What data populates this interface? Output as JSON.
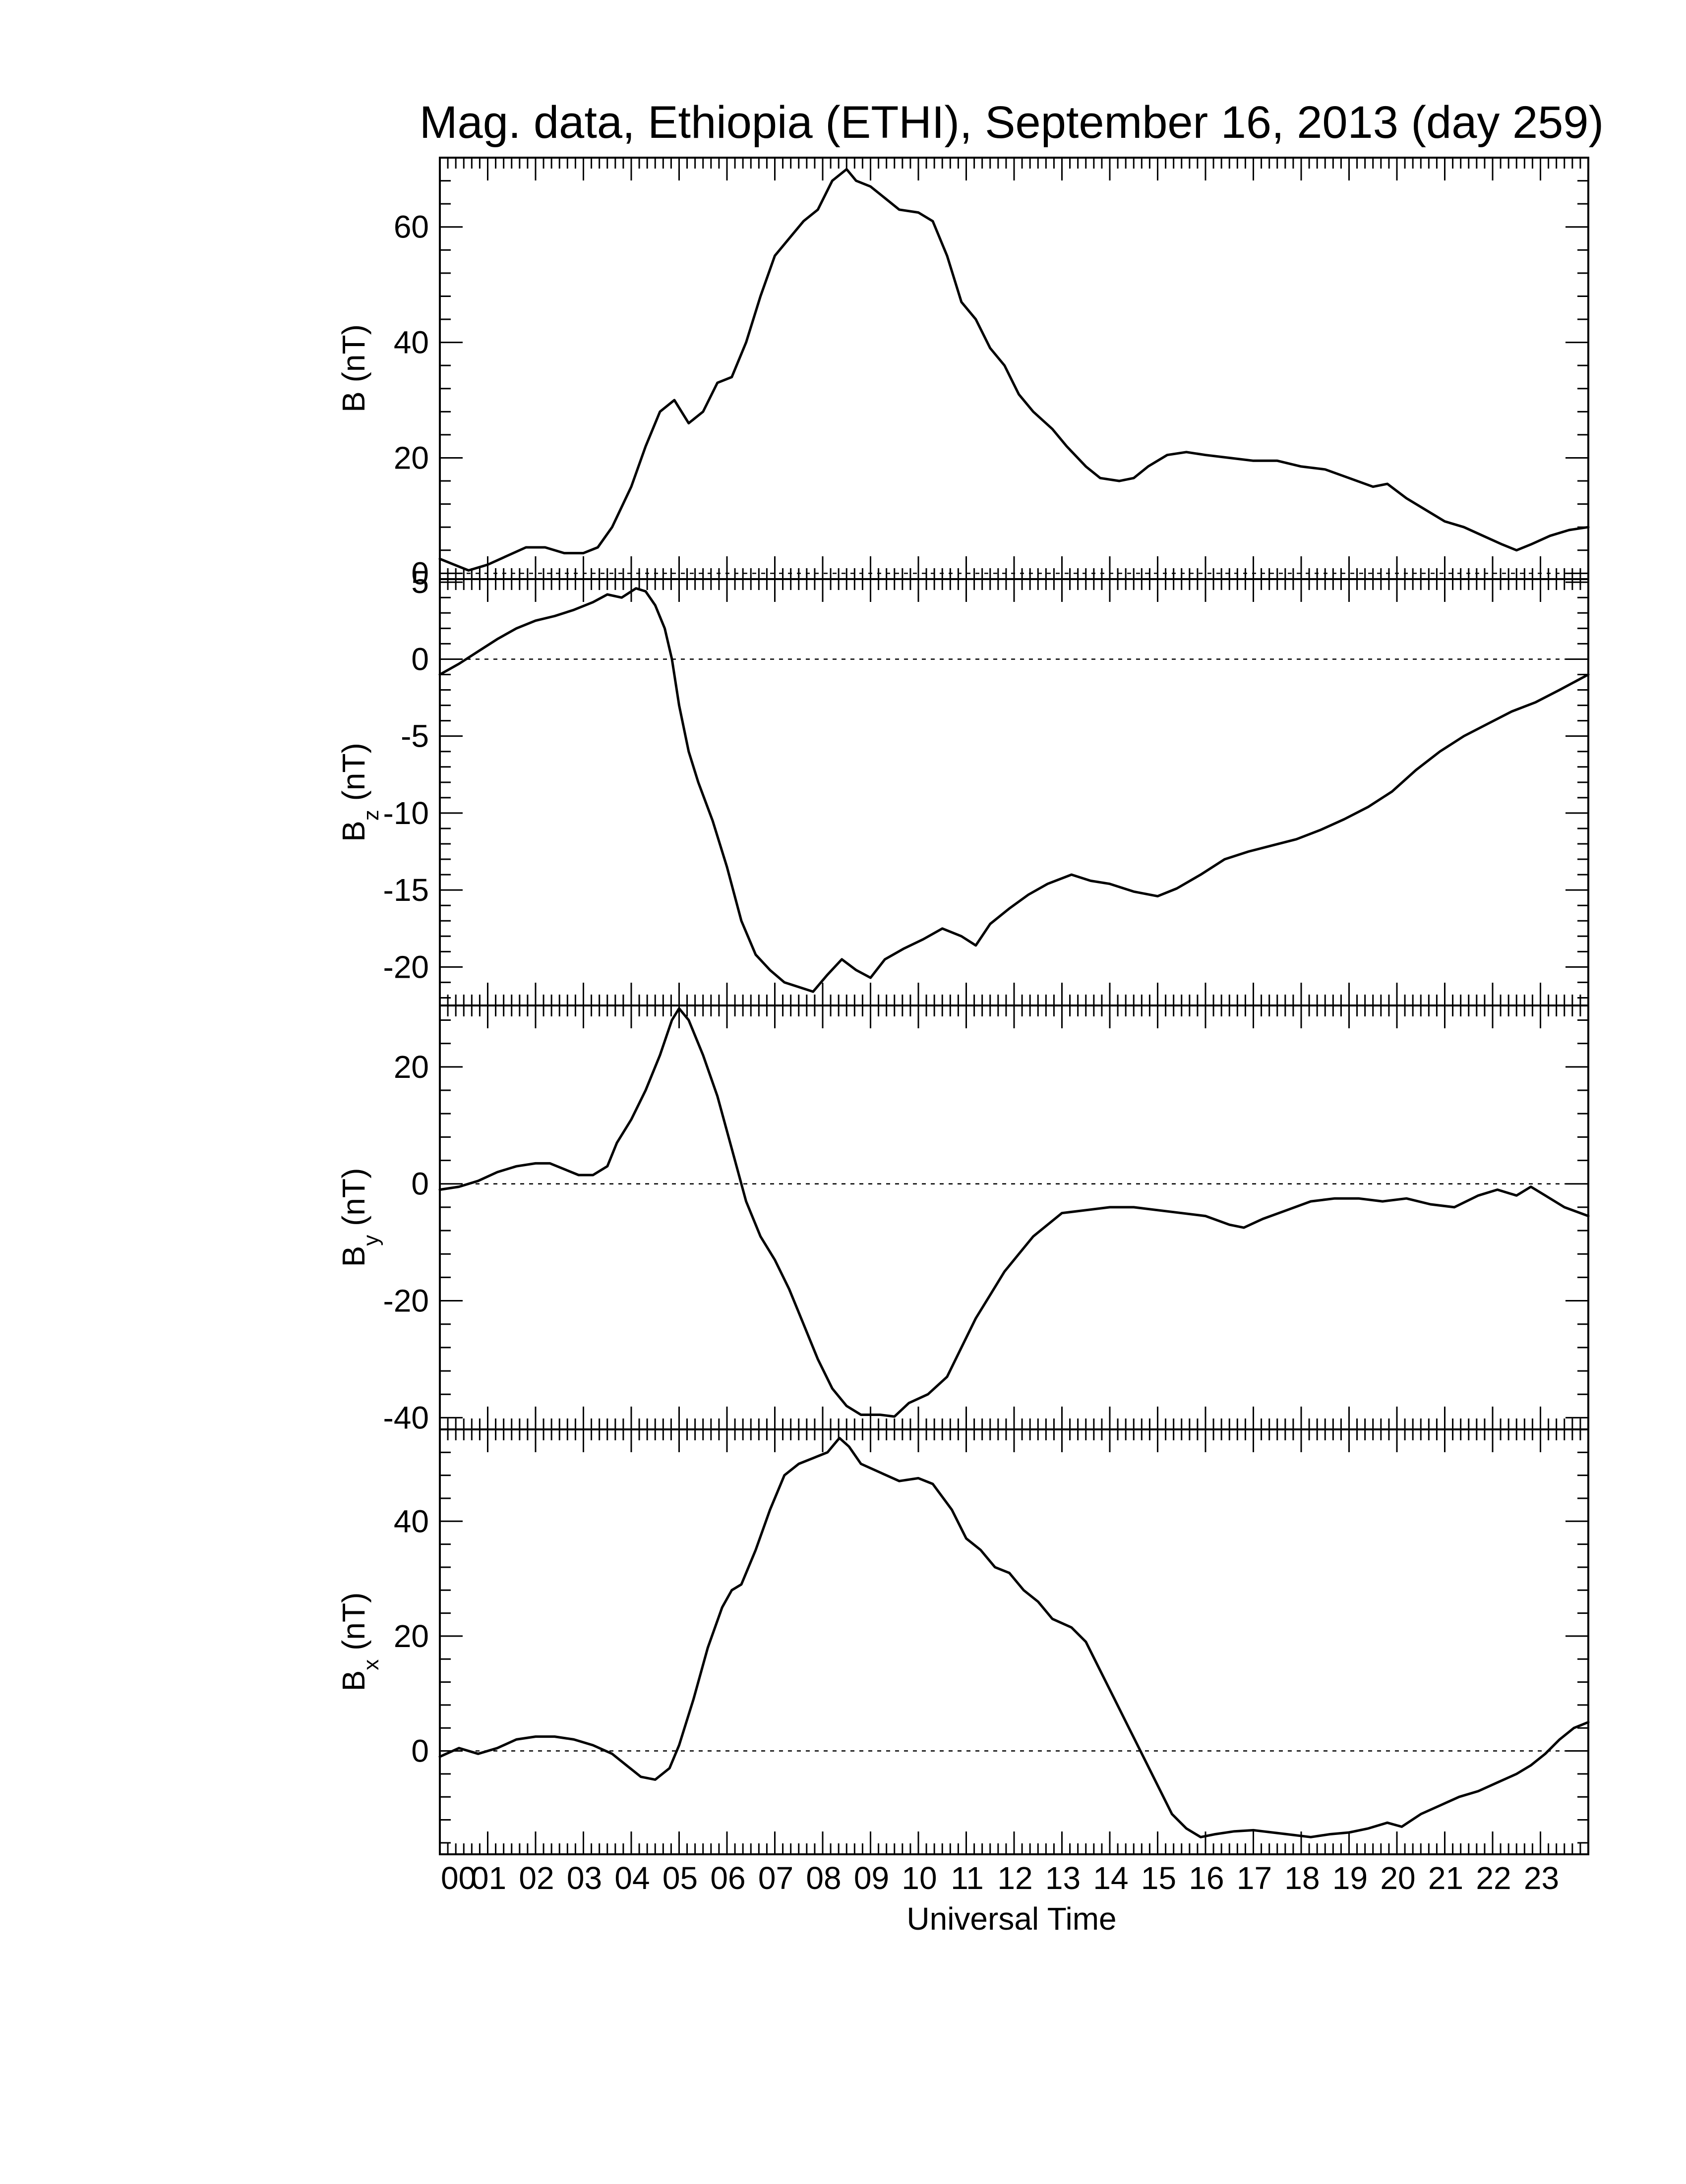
{
  "chart_data": {
    "type": "line",
    "title": "Mag. data, Ethiopia (ETHI), September 16, 2013 (day 259)",
    "xlabel": "Universal Time",
    "xlim": [
      0,
      24
    ],
    "x_tick_labels": [
      "00",
      "01",
      "02",
      "03",
      "04",
      "05",
      "06",
      "07",
      "08",
      "09",
      "10",
      "11",
      "12",
      "13",
      "14",
      "15",
      "16",
      "17",
      "18",
      "19",
      "20",
      "21",
      "22",
      "23"
    ],
    "panels": [
      {
        "id": "B",
        "ylabel": "B (nT)",
        "ylabel_main": "B",
        "ylabel_sub": "",
        "ylabel_unit": " (nT)",
        "ylim": [
          -1,
          72
        ],
        "yticks": [
          0,
          20,
          40,
          60
        ],
        "ytick_labels": [
          "0",
          "20",
          "40",
          "60"
        ],
        "zero_line": true,
        "points": [
          [
            0,
            2.5
          ],
          [
            0.3,
            1.5
          ],
          [
            0.6,
            0.5
          ],
          [
            1,
            1.5
          ],
          [
            1.4,
            3
          ],
          [
            1.8,
            4.5
          ],
          [
            2.2,
            4.5
          ],
          [
            2.6,
            3.5
          ],
          [
            3,
            3.5
          ],
          [
            3.3,
            4.5
          ],
          [
            3.6,
            8
          ],
          [
            4,
            15
          ],
          [
            4.3,
            22
          ],
          [
            4.6,
            28
          ],
          [
            4.9,
            30
          ],
          [
            5.2,
            26
          ],
          [
            5.5,
            28
          ],
          [
            5.8,
            33
          ],
          [
            6.1,
            34
          ],
          [
            6.4,
            40
          ],
          [
            6.7,
            48
          ],
          [
            7,
            55
          ],
          [
            7.3,
            58
          ],
          [
            7.6,
            61
          ],
          [
            7.9,
            63
          ],
          [
            8.2,
            68
          ],
          [
            8.5,
            70
          ],
          [
            8.7,
            68
          ],
          [
            9,
            67
          ],
          [
            9.3,
            65
          ],
          [
            9.6,
            63
          ],
          [
            10,
            62.5
          ],
          [
            10.3,
            61
          ],
          [
            10.6,
            55
          ],
          [
            10.9,
            47
          ],
          [
            11.2,
            44
          ],
          [
            11.5,
            39
          ],
          [
            11.8,
            36
          ],
          [
            12.1,
            31
          ],
          [
            12.4,
            28
          ],
          [
            12.8,
            25
          ],
          [
            13.1,
            22
          ],
          [
            13.5,
            18.5
          ],
          [
            13.8,
            16.5
          ],
          [
            14.2,
            16
          ],
          [
            14.5,
            16.5
          ],
          [
            14.8,
            18.5
          ],
          [
            15.2,
            20.5
          ],
          [
            15.6,
            21
          ],
          [
            16,
            20.5
          ],
          [
            16.5,
            20
          ],
          [
            17,
            19.5
          ],
          [
            17.5,
            19.5
          ],
          [
            18,
            18.5
          ],
          [
            18.5,
            18
          ],
          [
            19,
            16.5
          ],
          [
            19.5,
            15
          ],
          [
            19.8,
            15.5
          ],
          [
            20.2,
            13
          ],
          [
            20.6,
            11
          ],
          [
            21,
            9
          ],
          [
            21.4,
            8
          ],
          [
            21.8,
            6.5
          ],
          [
            22.2,
            5
          ],
          [
            22.5,
            4
          ],
          [
            22.8,
            5
          ],
          [
            23.2,
            6.5
          ],
          [
            23.6,
            7.5
          ],
          [
            24,
            8
          ]
        ]
      },
      {
        "id": "Bz",
        "ylabel": "Bz (nT)",
        "ylabel_main": "B",
        "ylabel_sub": "z",
        "ylabel_unit": " (nT)",
        "ylim": [
          -22.5,
          5.2
        ],
        "yticks": [
          -20,
          -15,
          -10,
          -5,
          0,
          5
        ],
        "ytick_labels": [
          "-20",
          "-15",
          "-10",
          "-5",
          "0",
          "5"
        ],
        "zero_line": true,
        "points": [
          [
            0,
            -1
          ],
          [
            0.4,
            -0.3
          ],
          [
            0.8,
            0.5
          ],
          [
            1.2,
            1.3
          ],
          [
            1.6,
            2
          ],
          [
            2,
            2.5
          ],
          [
            2.4,
            2.8
          ],
          [
            2.8,
            3.2
          ],
          [
            3.2,
            3.7
          ],
          [
            3.5,
            4.2
          ],
          [
            3.8,
            4
          ],
          [
            4.1,
            4.6
          ],
          [
            4.3,
            4.4
          ],
          [
            4.5,
            3.5
          ],
          [
            4.7,
            2
          ],
          [
            4.85,
            0
          ],
          [
            5,
            -3
          ],
          [
            5.2,
            -6
          ],
          [
            5.4,
            -8
          ],
          [
            5.7,
            -10.5
          ],
          [
            6,
            -13.5
          ],
          [
            6.3,
            -17
          ],
          [
            6.6,
            -19.2
          ],
          [
            6.9,
            -20.2
          ],
          [
            7.2,
            -21
          ],
          [
            7.5,
            -21.3
          ],
          [
            7.8,
            -21.6
          ],
          [
            8.1,
            -20.5
          ],
          [
            8.4,
            -19.5
          ],
          [
            8.7,
            -20.2
          ],
          [
            9,
            -20.7
          ],
          [
            9.3,
            -19.5
          ],
          [
            9.7,
            -18.8
          ],
          [
            10.1,
            -18.2
          ],
          [
            10.5,
            -17.5
          ],
          [
            10.9,
            -18
          ],
          [
            11.2,
            -18.6
          ],
          [
            11.5,
            -17.2
          ],
          [
            11.9,
            -16.2
          ],
          [
            12.3,
            -15.3
          ],
          [
            12.7,
            -14.6
          ],
          [
            13.2,
            -14
          ],
          [
            13.6,
            -14.4
          ],
          [
            14,
            -14.6
          ],
          [
            14.5,
            -15.1
          ],
          [
            15,
            -15.4
          ],
          [
            15.4,
            -14.9
          ],
          [
            15.9,
            -14
          ],
          [
            16.4,
            -13
          ],
          [
            16.9,
            -12.5
          ],
          [
            17.4,
            -12.1
          ],
          [
            17.9,
            -11.7
          ],
          [
            18.4,
            -11.1
          ],
          [
            18.9,
            -10.4
          ],
          [
            19.4,
            -9.6
          ],
          [
            19.9,
            -8.6
          ],
          [
            20.4,
            -7.2
          ],
          [
            20.9,
            -6
          ],
          [
            21.4,
            -5
          ],
          [
            21.9,
            -4.2
          ],
          [
            22.4,
            -3.4
          ],
          [
            22.9,
            -2.8
          ],
          [
            23.4,
            -2
          ],
          [
            24,
            -1
          ]
        ]
      },
      {
        "id": "By",
        "ylabel": "By (nT)",
        "ylabel_main": "B",
        "ylabel_sub": "y",
        "ylabel_unit": " (nT)",
        "ylim": [
          -42,
          30.5
        ],
        "yticks": [
          -40,
          -20,
          0,
          20
        ],
        "ytick_labels": [
          "-40",
          "-20",
          "0",
          "20"
        ],
        "zero_line": true,
        "points": [
          [
            0,
            -1
          ],
          [
            0.4,
            -0.5
          ],
          [
            0.8,
            0.5
          ],
          [
            1.2,
            2
          ],
          [
            1.6,
            3
          ],
          [
            2,
            3.5
          ],
          [
            2.3,
            3.5
          ],
          [
            2.6,
            2.5
          ],
          [
            2.9,
            1.5
          ],
          [
            3.2,
            1.5
          ],
          [
            3.5,
            3
          ],
          [
            3.7,
            7
          ],
          [
            4,
            11
          ],
          [
            4.3,
            16
          ],
          [
            4.6,
            22
          ],
          [
            4.85,
            28
          ],
          [
            5,
            30
          ],
          [
            5.2,
            28
          ],
          [
            5.5,
            22
          ],
          [
            5.8,
            15
          ],
          [
            6.1,
            6
          ],
          [
            6.4,
            -3
          ],
          [
            6.7,
            -9
          ],
          [
            7,
            -13
          ],
          [
            7.3,
            -18
          ],
          [
            7.6,
            -24
          ],
          [
            7.9,
            -30
          ],
          [
            8.2,
            -35
          ],
          [
            8.5,
            -38
          ],
          [
            8.8,
            -39.5
          ],
          [
            9.2,
            -39.5
          ],
          [
            9.5,
            -39.8
          ],
          [
            9.8,
            -37.5
          ],
          [
            10.2,
            -36
          ],
          [
            10.6,
            -33
          ],
          [
            10.9,
            -28
          ],
          [
            11.2,
            -23
          ],
          [
            11.5,
            -19
          ],
          [
            11.8,
            -15
          ],
          [
            12.1,
            -12
          ],
          [
            12.4,
            -9
          ],
          [
            12.7,
            -7
          ],
          [
            13,
            -5
          ],
          [
            13.5,
            -4.5
          ],
          [
            14,
            -4
          ],
          [
            14.5,
            -4
          ],
          [
            15,
            -4.5
          ],
          [
            15.5,
            -5
          ],
          [
            16,
            -5.5
          ],
          [
            16.5,
            -7
          ],
          [
            16.8,
            -7.5
          ],
          [
            17.2,
            -6
          ],
          [
            17.7,
            -4.5
          ],
          [
            18.2,
            -3
          ],
          [
            18.7,
            -2.5
          ],
          [
            19.2,
            -2.5
          ],
          [
            19.7,
            -3
          ],
          [
            20.2,
            -2.5
          ],
          [
            20.7,
            -3.5
          ],
          [
            21.2,
            -4
          ],
          [
            21.7,
            -2
          ],
          [
            22.1,
            -1
          ],
          [
            22.5,
            -2
          ],
          [
            22.8,
            -0.5
          ],
          [
            23.1,
            -2
          ],
          [
            23.5,
            -4
          ],
          [
            24,
            -5.5
          ]
        ]
      },
      {
        "id": "Bx",
        "ylabel": "Bx (nT)",
        "ylabel_main": "B",
        "ylabel_sub": "x",
        "ylabel_unit": " (nT)",
        "ylim": [
          -18,
          56
        ],
        "yticks": [
          0,
          20,
          40
        ],
        "ytick_labels": [
          "0",
          "20",
          "40"
        ],
        "zero_line": true,
        "points": [
          [
            0,
            -1
          ],
          [
            0.4,
            0.5
          ],
          [
            0.8,
            -0.5
          ],
          [
            1.2,
            0.5
          ],
          [
            1.6,
            2
          ],
          [
            2,
            2.5
          ],
          [
            2.4,
            2.5
          ],
          [
            2.8,
            2
          ],
          [
            3.2,
            1
          ],
          [
            3.6,
            -0.5
          ],
          [
            3.9,
            -2.5
          ],
          [
            4.2,
            -4.5
          ],
          [
            4.5,
            -5
          ],
          [
            4.8,
            -3
          ],
          [
            5,
            1
          ],
          [
            5.3,
            9
          ],
          [
            5.6,
            18
          ],
          [
            5.9,
            25
          ],
          [
            6.1,
            28
          ],
          [
            6.3,
            29
          ],
          [
            6.6,
            35
          ],
          [
            6.9,
            42
          ],
          [
            7.2,
            48
          ],
          [
            7.5,
            50
          ],
          [
            7.8,
            51
          ],
          [
            8.1,
            52
          ],
          [
            8.35,
            54.5
          ],
          [
            8.55,
            53
          ],
          [
            8.8,
            50
          ],
          [
            9.2,
            48.5
          ],
          [
            9.6,
            47
          ],
          [
            10,
            47.5
          ],
          [
            10.3,
            46.5
          ],
          [
            10.7,
            42
          ],
          [
            11,
            37
          ],
          [
            11.3,
            35
          ],
          [
            11.6,
            32
          ],
          [
            11.9,
            31
          ],
          [
            12.2,
            28
          ],
          [
            12.5,
            26
          ],
          [
            12.8,
            23
          ],
          [
            13.2,
            21.5
          ],
          [
            13.5,
            19
          ],
          [
            13.8,
            14
          ],
          [
            14.1,
            9
          ],
          [
            14.4,
            4
          ],
          [
            14.7,
            -1
          ],
          [
            15,
            -6
          ],
          [
            15.3,
            -11
          ],
          [
            15.6,
            -13.5
          ],
          [
            15.9,
            -15
          ],
          [
            16.2,
            -14.5
          ],
          [
            16.6,
            -14
          ],
          [
            17,
            -13.8
          ],
          [
            17.4,
            -14.2
          ],
          [
            17.8,
            -14.6
          ],
          [
            18.2,
            -15
          ],
          [
            18.6,
            -14.5
          ],
          [
            19,
            -14.2
          ],
          [
            19.4,
            -13.5
          ],
          [
            19.8,
            -12.5
          ],
          [
            20.1,
            -13.2
          ],
          [
            20.5,
            -11
          ],
          [
            20.9,
            -9.5
          ],
          [
            21.3,
            -8
          ],
          [
            21.7,
            -7
          ],
          [
            22.1,
            -5.5
          ],
          [
            22.5,
            -4
          ],
          [
            22.8,
            -2.5
          ],
          [
            23.1,
            -0.5
          ],
          [
            23.4,
            2
          ],
          [
            23.7,
            4
          ],
          [
            24,
            5
          ]
        ]
      }
    ]
  }
}
